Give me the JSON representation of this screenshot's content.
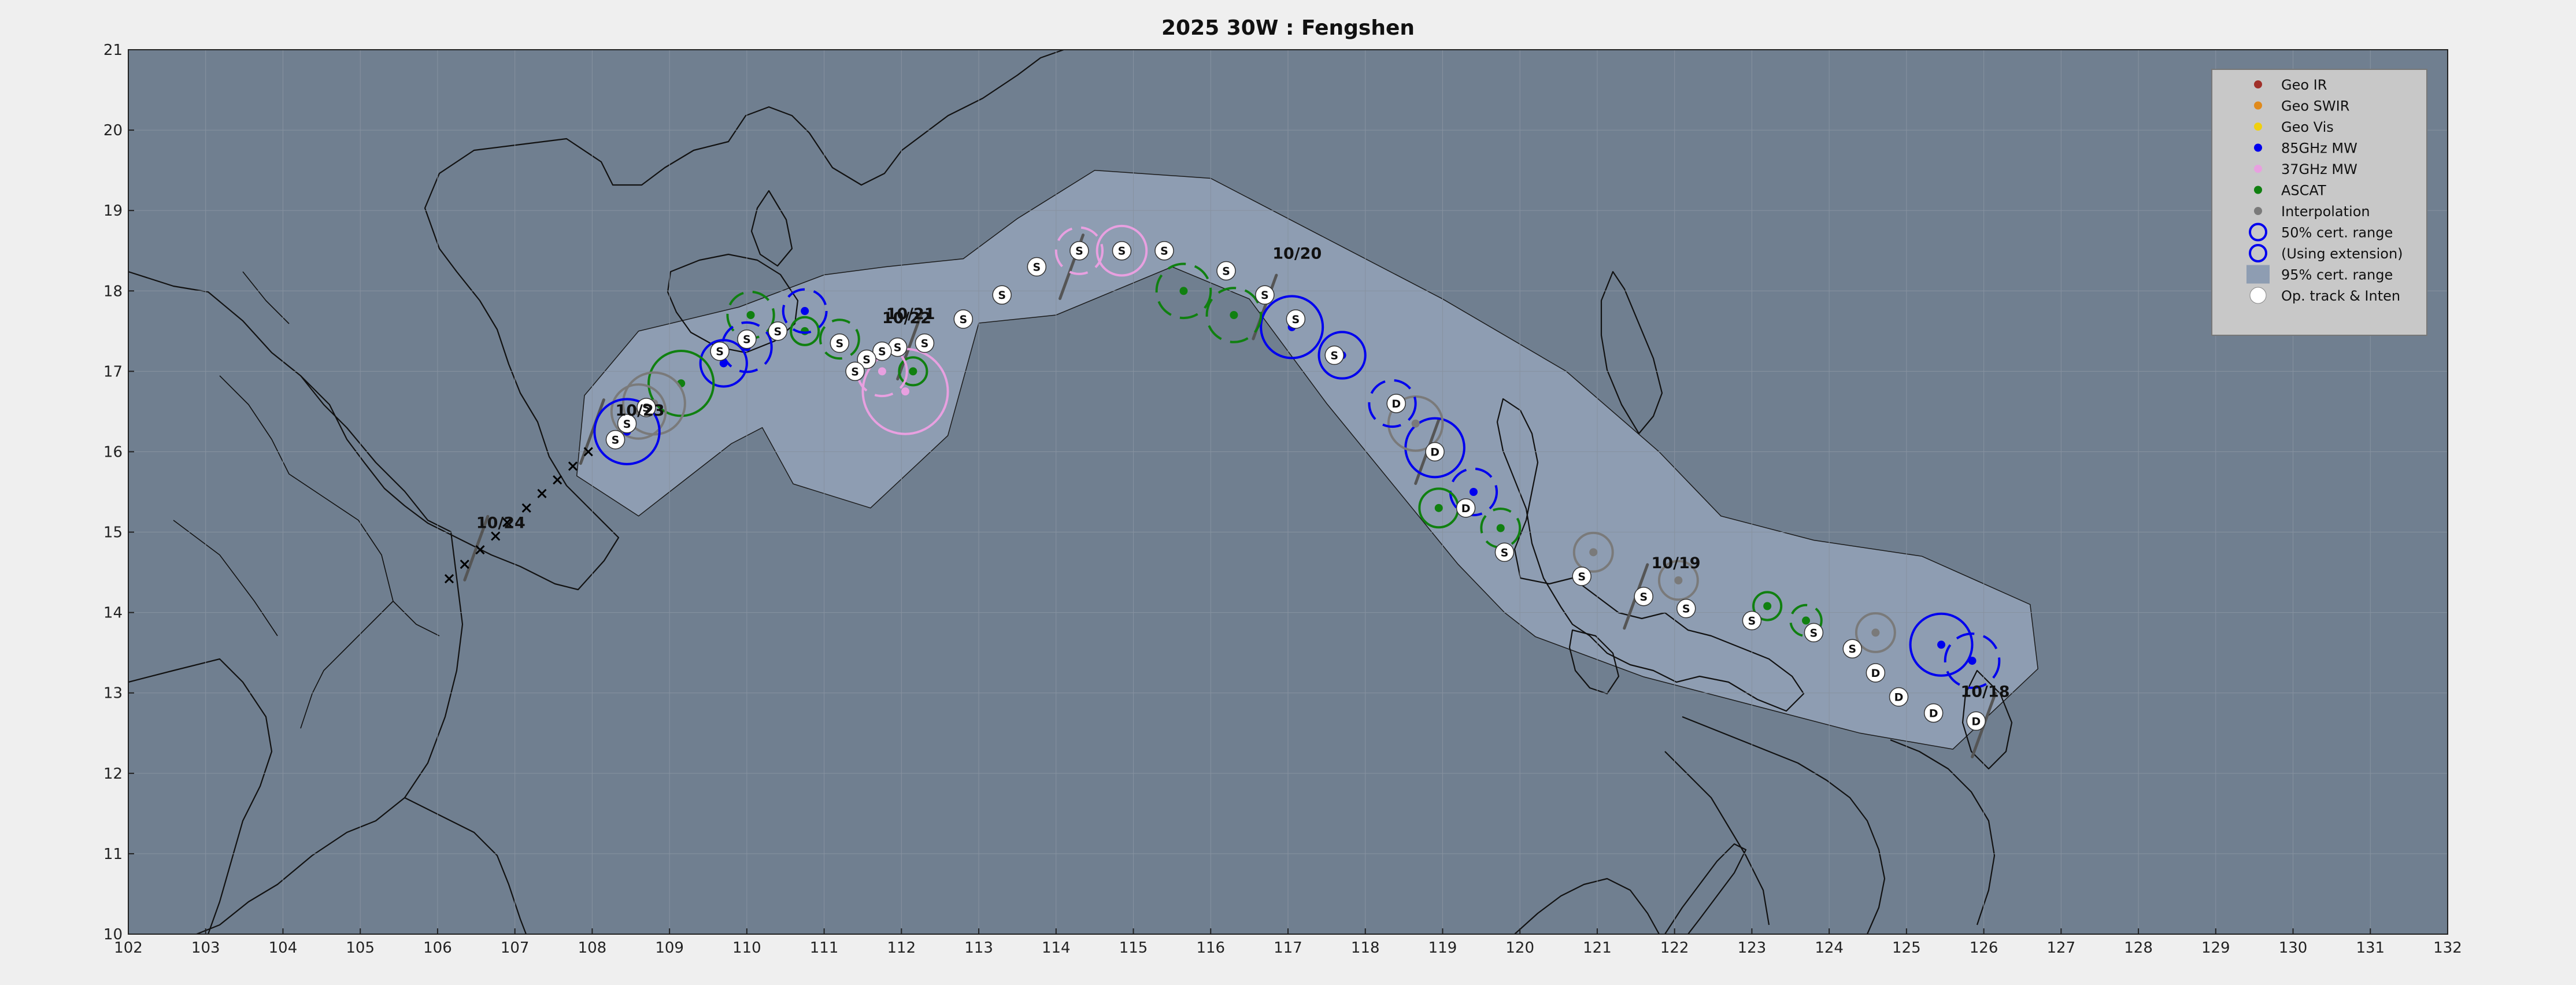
{
  "title": "2025  30W :  Fengshen",
  "colors": {
    "ocean": "#707f90",
    "cone": "#8e9db2",
    "coast": "#111111",
    "grid": "#8792a0",
    "geo_ir": "#a0302a",
    "geo_swir": "#e08a1c",
    "geo_vis": "#f0d010",
    "mw85": "#0000ee",
    "mw37": "#e8a0e0",
    "ascat": "#108010",
    "interp": "#7a7a7a",
    "legend_bg": "#c8c8c8"
  },
  "legend": {
    "items": [
      {
        "label": "Geo IR",
        "symbol": "dot",
        "color": "#a0302a"
      },
      {
        "label": "Geo SWIR",
        "symbol": "dot",
        "color": "#e08a1c"
      },
      {
        "label": "Geo Vis",
        "symbol": "dot",
        "color": "#f0d010"
      },
      {
        "label": "85GHz MW",
        "symbol": "dot",
        "color": "#0000ee"
      },
      {
        "label": "37GHz MW",
        "symbol": "dot",
        "color": "#e8a0e0"
      },
      {
        "label": "ASCAT",
        "symbol": "dot",
        "color": "#108010"
      },
      {
        "label": "Interpolation",
        "symbol": "dot",
        "color": "#7a7a7a"
      },
      {
        "label": "50% cert. range",
        "symbol": "ring",
        "color": "#0000ee"
      },
      {
        "label": "(Using extension)",
        "symbol": "ring",
        "color": "#0000ee"
      },
      {
        "label": "95% cert. range",
        "symbol": "box",
        "color": "#8e9db2"
      },
      {
        "label": "Op. track & Inten",
        "symbol": "white",
        "color": "#ffffff"
      }
    ]
  },
  "chart_data": {
    "type": "track_map",
    "xlim": [
      102,
      132
    ],
    "ylim": [
      10,
      21
    ],
    "xticks": [
      "102",
      "103",
      "104",
      "105",
      "106",
      "107",
      "108",
      "109",
      "110",
      "111",
      "112",
      "113",
      "114",
      "115",
      "116",
      "117",
      "118",
      "119",
      "120",
      "121",
      "122",
      "123",
      "124",
      "125",
      "126",
      "127",
      "128",
      "129",
      "130",
      "131",
      "132"
    ],
    "yticks": [
      "10",
      "11",
      "12",
      "13",
      "14",
      "15",
      "16",
      "17",
      "18",
      "19",
      "20",
      "21"
    ],
    "grid": true,
    "legend_position": "top-right",
    "date_labels": [
      {
        "text": "10/18",
        "lon": 125.7,
        "lat": 12.95
      },
      {
        "text": "10/19",
        "lon": 121.7,
        "lat": 14.55
      },
      {
        "text": "10/20",
        "lon": 116.8,
        "lat": 18.4
      },
      {
        "text": "10/21",
        "lon": 111.8,
        "lat": 17.65
      },
      {
        "text": "10/22",
        "lon": 111.75,
        "lat": 17.6
      },
      {
        "text": "10/23",
        "lon": 108.3,
        "lat": 16.45
      },
      {
        "text": "10/24",
        "lon": 106.5,
        "lat": 15.05
      }
    ],
    "cone_path": [
      [
        126.7,
        13.3
      ],
      [
        125.6,
        12.3
      ],
      [
        124.4,
        12.5
      ],
      [
        121.6,
        13.2
      ],
      [
        120.2,
        13.7
      ],
      [
        119.8,
        14.0
      ],
      [
        119.2,
        14.6
      ],
      [
        117.5,
        16.6
      ],
      [
        116.5,
        17.9
      ],
      [
        115.5,
        18.3
      ],
      [
        114.0,
        17.7
      ],
      [
        113.0,
        17.6
      ],
      [
        112.6,
        16.2
      ],
      [
        111.6,
        15.3
      ],
      [
        110.6,
        15.6
      ],
      [
        110.2,
        16.3
      ],
      [
        109.8,
        16.1
      ],
      [
        108.6,
        15.2
      ],
      [
        107.8,
        15.7
      ],
      [
        107.9,
        16.7
      ],
      [
        108.6,
        17.5
      ],
      [
        109.9,
        17.8
      ],
      [
        111.0,
        18.2
      ],
      [
        111.8,
        18.3
      ],
      [
        112.8,
        18.4
      ],
      [
        113.5,
        18.9
      ],
      [
        114.5,
        19.5
      ],
      [
        116.0,
        19.4
      ],
      [
        117.8,
        18.5
      ],
      [
        119.0,
        17.9
      ],
      [
        120.6,
        17.0
      ],
      [
        121.8,
        16.0
      ],
      [
        122.6,
        15.2
      ],
      [
        123.8,
        14.9
      ],
      [
        125.2,
        14.7
      ],
      [
        126.6,
        14.1
      ]
    ],
    "operational_track": [
      {
        "lon": 125.9,
        "lat": 12.65,
        "mark": "D"
      },
      {
        "lon": 125.35,
        "lat": 12.75,
        "mark": "D"
      },
      {
        "lon": 124.9,
        "lat": 12.95,
        "mark": "D"
      },
      {
        "lon": 124.6,
        "lat": 13.25,
        "mark": "D"
      },
      {
        "lon": 124.3,
        "lat": 13.55,
        "mark": "S"
      },
      {
        "lon": 123.8,
        "lat": 13.75,
        "mark": "S"
      },
      {
        "lon": 123.0,
        "lat": 13.9,
        "mark": "S"
      },
      {
        "lon": 122.15,
        "lat": 14.05,
        "mark": "S"
      },
      {
        "lon": 121.6,
        "lat": 14.2,
        "mark": "S"
      },
      {
        "lon": 120.8,
        "lat": 14.45,
        "mark": "S"
      },
      {
        "lon": 119.8,
        "lat": 14.75,
        "mark": "S"
      },
      {
        "lon": 119.3,
        "lat": 15.3,
        "mark": "D"
      },
      {
        "lon": 118.9,
        "lat": 16.0,
        "mark": "D"
      },
      {
        "lon": 118.4,
        "lat": 16.6,
        "mark": "D"
      },
      {
        "lon": 117.6,
        "lat": 17.2,
        "mark": "S"
      },
      {
        "lon": 117.1,
        "lat": 17.65,
        "mark": "S"
      },
      {
        "lon": 116.7,
        "lat": 17.95,
        "mark": "S"
      },
      {
        "lon": 116.2,
        "lat": 18.25,
        "mark": "S"
      },
      {
        "lon": 115.4,
        "lat": 18.5,
        "mark": "S"
      },
      {
        "lon": 114.85,
        "lat": 18.5,
        "mark": "S"
      },
      {
        "lon": 114.3,
        "lat": 18.5,
        "mark": "S"
      },
      {
        "lon": 113.75,
        "lat": 18.3,
        "mark": "S"
      },
      {
        "lon": 113.3,
        "lat": 17.95,
        "mark": "S"
      },
      {
        "lon": 112.8,
        "lat": 17.65,
        "mark": "S"
      },
      {
        "lon": 112.3,
        "lat": 17.35,
        "mark": "S"
      },
      {
        "lon": 111.95,
        "lat": 17.3,
        "mark": "S"
      },
      {
        "lon": 111.75,
        "lat": 17.25,
        "mark": "S"
      },
      {
        "lon": 111.55,
        "lat": 17.15,
        "mark": "S"
      },
      {
        "lon": 111.4,
        "lat": 17.0,
        "mark": "S"
      },
      {
        "lon": 111.2,
        "lat": 17.35,
        "mark": "S"
      },
      {
        "lon": 110.4,
        "lat": 17.5,
        "mark": "S"
      },
      {
        "lon": 110.0,
        "lat": 17.4,
        "mark": "S"
      },
      {
        "lon": 109.65,
        "lat": 17.25,
        "mark": "S"
      },
      {
        "lon": 108.7,
        "lat": 16.55,
        "mark": "S"
      },
      {
        "lon": 108.45,
        "lat": 16.35,
        "mark": "S"
      },
      {
        "lon": 108.3,
        "lat": 16.15,
        "mark": "S"
      }
    ],
    "land_crosses": [
      {
        "lon": 107.95,
        "lat": 16.0
      },
      {
        "lon": 107.75,
        "lat": 15.82
      },
      {
        "lon": 107.55,
        "lat": 15.65
      },
      {
        "lon": 107.35,
        "lat": 15.48
      },
      {
        "lon": 107.15,
        "lat": 15.3
      },
      {
        "lon": 106.9,
        "lat": 15.12
      },
      {
        "lon": 106.75,
        "lat": 14.95
      },
      {
        "lon": 106.55,
        "lat": 14.78
      },
      {
        "lon": 106.35,
        "lat": 14.6
      },
      {
        "lon": 106.15,
        "lat": 14.42
      }
    ],
    "fixes": [
      {
        "type": "85GHz MW",
        "lon": 125.45,
        "lat": 13.6,
        "r": 0.4,
        "ext": false
      },
      {
        "type": "85GHz MW",
        "lon": 125.85,
        "lat": 13.4,
        "r": 0.35,
        "ext": true
      },
      {
        "type": "Interpolation",
        "lon": 124.6,
        "lat": 13.75,
        "r": 0.25,
        "ext": false
      },
      {
        "type": "ASCAT",
        "lon": 123.7,
        "lat": 13.9,
        "r": 0.2,
        "ext": true
      },
      {
        "type": "ASCAT",
        "lon": 123.2,
        "lat": 14.08,
        "r": 0.18,
        "ext": false
      },
      {
        "type": "Interpolation",
        "lon": 122.05,
        "lat": 14.4,
        "r": 0.25,
        "ext": false
      },
      {
        "type": "Interpolation",
        "lon": 120.95,
        "lat": 14.75,
        "r": 0.25,
        "ext": false
      },
      {
        "type": "ASCAT",
        "lon": 119.75,
        "lat": 15.05,
        "r": 0.25,
        "ext": true
      },
      {
        "type": "85GHz MW",
        "lon": 119.4,
        "lat": 15.5,
        "r": 0.3,
        "ext": true
      },
      {
        "type": "ASCAT",
        "lon": 118.95,
        "lat": 15.3,
        "r": 0.25,
        "ext": false
      },
      {
        "type": "85GHz MW",
        "lon": 118.9,
        "lat": 16.05,
        "r": 0.38,
        "ext": false
      },
      {
        "type": "Interpolation",
        "lon": 118.65,
        "lat": 16.35,
        "r": 0.35,
        "ext": false
      },
      {
        "type": "85GHz MW",
        "lon": 118.35,
        "lat": 16.6,
        "r": 0.3,
        "ext": true
      },
      {
        "type": "85GHz MW",
        "lon": 117.7,
        "lat": 17.2,
        "r": 0.3,
        "ext": false
      },
      {
        "type": "85GHz MW",
        "lon": 117.05,
        "lat": 17.55,
        "r": 0.4,
        "ext": false
      },
      {
        "type": "ASCAT",
        "lon": 116.3,
        "lat": 17.7,
        "r": 0.35,
        "ext": true
      },
      {
        "type": "ASCAT",
        "lon": 115.65,
        "lat": 18.0,
        "r": 0.35,
        "ext": true
      },
      {
        "type": "37GHz MW",
        "lon": 114.85,
        "lat": 18.5,
        "r": 0.32,
        "ext": false
      },
      {
        "type": "37GHz MW",
        "lon": 114.3,
        "lat": 18.5,
        "r": 0.3,
        "ext": true
      },
      {
        "type": "ASCAT",
        "lon": 112.15,
        "lat": 17.0,
        "r": 0.18,
        "ext": false
      },
      {
        "type": "37GHz MW",
        "lon": 112.05,
        "lat": 16.75,
        "r": 0.55,
        "ext": false
      },
      {
        "type": "37GHz MW",
        "lon": 111.75,
        "lat": 17.0,
        "r": 0.32,
        "ext": true
      },
      {
        "type": "ASCAT",
        "lon": 111.2,
        "lat": 17.4,
        "r": 0.25,
        "ext": true
      },
      {
        "type": "ASCAT",
        "lon": 110.75,
        "lat": 17.5,
        "r": 0.18,
        "ext": false
      },
      {
        "type": "85GHz MW",
        "lon": 110.75,
        "lat": 17.75,
        "r": 0.28,
        "ext": true
      },
      {
        "type": "ASCAT",
        "lon": 110.05,
        "lat": 17.7,
        "r": 0.3,
        "ext": true
      },
      {
        "type": "85GHz MW",
        "lon": 110.0,
        "lat": 17.3,
        "r": 0.32,
        "ext": true
      },
      {
        "type": "85GHz MW",
        "lon": 109.7,
        "lat": 17.1,
        "r": 0.3,
        "ext": false
      },
      {
        "type": "ASCAT",
        "lon": 109.15,
        "lat": 16.85,
        "r": 0.42,
        "ext": false
      },
      {
        "type": "Interpolation",
        "lon": 108.8,
        "lat": 16.6,
        "r": 0.4,
        "ext": false
      },
      {
        "type": "Interpolation",
        "lon": 108.6,
        "lat": 16.5,
        "r": 0.35,
        "ext": false
      },
      {
        "type": "85GHz MW",
        "lon": 108.45,
        "lat": 16.25,
        "r": 0.42,
        "ext": false
      }
    ],
    "forecast_ticks": [
      {
        "lon": 126.0,
        "lat": 12.6
      },
      {
        "lon": 121.5,
        "lat": 14.2
      },
      {
        "lon": 116.7,
        "lat": 17.8
      },
      {
        "lon": 112.1,
        "lat": 17.3
      },
      {
        "lon": 108.0,
        "lat": 16.25
      },
      {
        "lon": 106.5,
        "lat": 14.8
      },
      {
        "lon": 118.8,
        "lat": 16.0
      },
      {
        "lon": 114.2,
        "lat": 18.3
      }
    ]
  }
}
